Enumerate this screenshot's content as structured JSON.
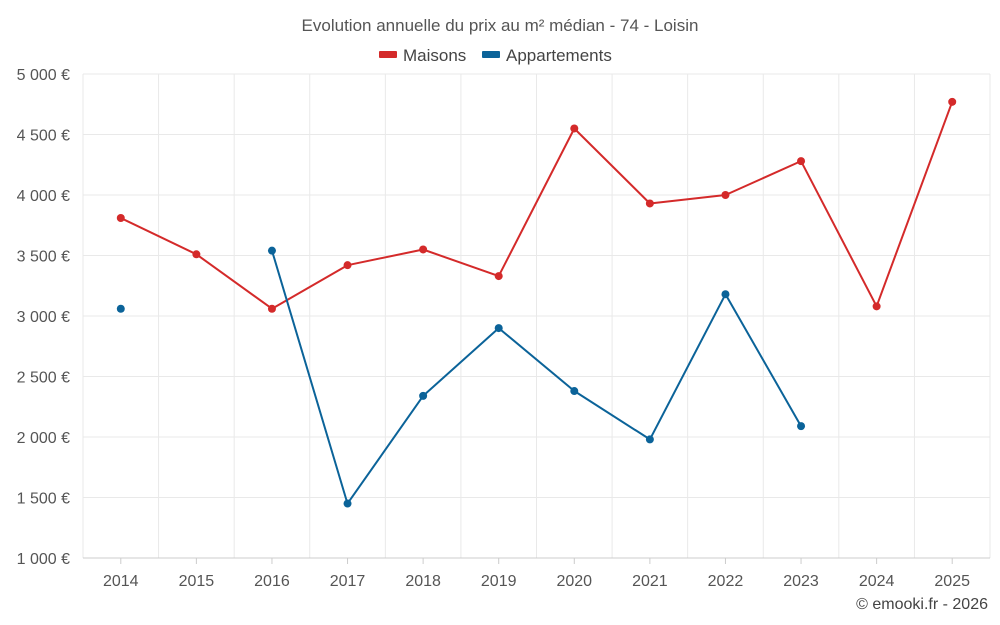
{
  "chart_data": {
    "type": "line",
    "title": "Evolution annuelle du prix au m² médian - 74 - Loisin",
    "xlabel": "",
    "ylabel": "",
    "categories": [
      "2014",
      "2015",
      "2016",
      "2017",
      "2018",
      "2019",
      "2020",
      "2021",
      "2022",
      "2023",
      "2024",
      "2025"
    ],
    "ylim": [
      1000,
      5000
    ],
    "yticks": [
      1000,
      1500,
      2000,
      2500,
      3000,
      3500,
      4000,
      4500,
      5000
    ],
    "ytick_labels": [
      "1 000 €",
      "1 500 €",
      "2 000 €",
      "2 500 €",
      "3 000 €",
      "3 500 €",
      "4 000 €",
      "4 500 €",
      "5 000 €"
    ],
    "grid": true,
    "legend_position": "top-center",
    "series": [
      {
        "name": "Maisons",
        "color": "#d42a2a",
        "values": [
          3810,
          3510,
          3060,
          3420,
          3550,
          3330,
          4550,
          3930,
          4000,
          4280,
          3080,
          4770
        ]
      },
      {
        "name": "Appartements",
        "color": "#0b6399",
        "values": [
          3060,
          null,
          3540,
          1450,
          2340,
          2900,
          2380,
          1980,
          3180,
          2090,
          null,
          null
        ]
      }
    ],
    "credit": "© emooki.fr - 2026"
  }
}
